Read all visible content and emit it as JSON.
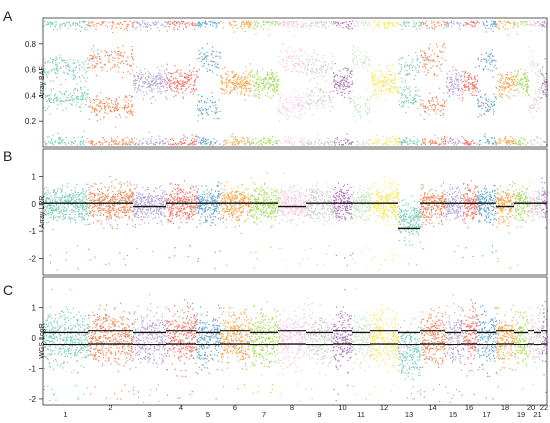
{
  "panel_letters": [
    "A",
    "B",
    "C"
  ],
  "chart_data": [
    {
      "type": "scatter",
      "panel": "A",
      "ylabel": "Array BAF",
      "ylim": [
        0,
        1
      ],
      "yticks": [
        0.2,
        0.4,
        0.6,
        0.8
      ],
      "xticks_shown": false
    },
    {
      "type": "scatter",
      "panel": "B",
      "ylabel": "Array LRR",
      "ylim": [
        -2.6,
        2.0
      ],
      "yticks": [
        -2,
        -1,
        0,
        1
      ],
      "xticks_shown": false
    },
    {
      "type": "scatter",
      "panel": "C",
      "ylabel": "WGS LogR",
      "ylim": [
        -2.2,
        2.0
      ],
      "yticks": [
        -2,
        -1,
        0,
        1
      ],
      "chromosome_labels": [
        "1",
        "2",
        "3",
        "4",
        "5",
        "6",
        "7",
        "8",
        "9",
        "10",
        "11",
        "12",
        "13",
        "14",
        "15",
        "16",
        "17",
        "18",
        "19",
        "20",
        "21",
        "22"
      ]
    }
  ],
  "chromosome_colors": [
    "#7fcdbb",
    "#f08a5d",
    "#b9a9d8",
    "#f4756b",
    "#6aa8d0",
    "#f6a84c",
    "#a8dc60",
    "#f6c8e0",
    "#d0d0d0",
    "#b477c0",
    "#c8e8c8",
    "#f8e860",
    "#7fcdbb",
    "#f08a5d",
    "#b9a9d8",
    "#f4756b",
    "#6aa8d0",
    "#f6a84c",
    "#a8dc60",
    "#f6c8e0",
    "#d0d0d0",
    "#b477c0"
  ]
}
